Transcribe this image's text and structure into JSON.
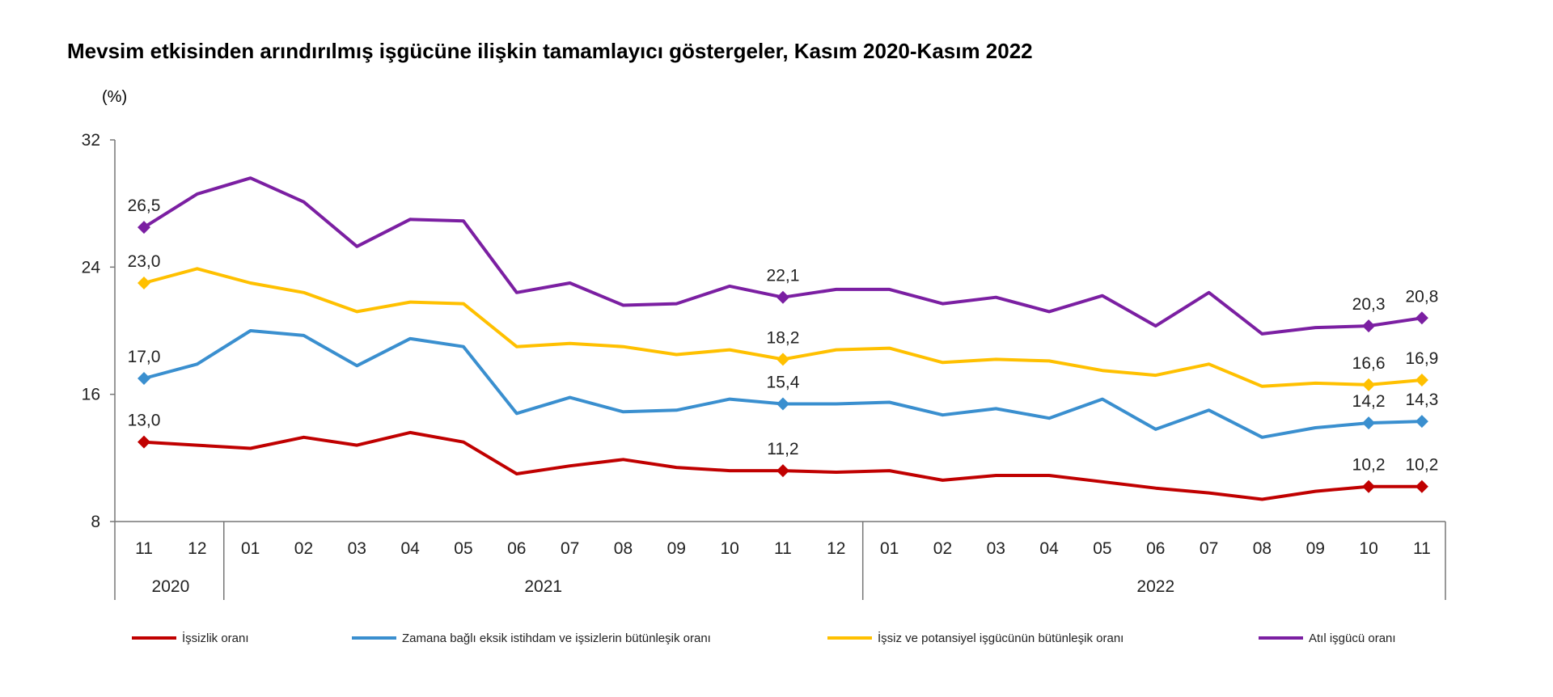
{
  "chart_data": {
    "type": "line",
    "title": "Mevsim etkisinden arındırılmış işgücüne ilişkin tamamlayıcı göstergeler, Kasım 2020-Kasım 2022",
    "ylabel": "(%)",
    "xlabel": "",
    "ylim": [
      8,
      32
    ],
    "yticks": [
      "32",
      "24",
      "16",
      "8"
    ],
    "grid": false,
    "legend_position": "bottom",
    "categories": [
      "11",
      "12",
      "01",
      "02",
      "03",
      "04",
      "05",
      "06",
      "07",
      "08",
      "09",
      "10",
      "11",
      "12",
      "01",
      "02",
      "03",
      "04",
      "05",
      "06",
      "07",
      "08",
      "09",
      "10",
      "11"
    ],
    "year_groups": [
      {
        "label": "2020",
        "start": 0,
        "end": 1
      },
      {
        "label": "2021",
        "start": 2,
        "end": 13
      },
      {
        "label": "2022",
        "start": 14,
        "end": 24
      }
    ],
    "series": [
      {
        "name": "İşsizlik oranı",
        "color": "#c00000",
        "marker_indices": [
          0,
          12,
          23,
          24
        ],
        "values": [
          13.0,
          12.8,
          12.6,
          13.3,
          12.8,
          13.6,
          13.0,
          11.0,
          11.5,
          11.9,
          11.4,
          11.2,
          11.2,
          11.1,
          11.2,
          10.6,
          10.9,
          10.9,
          10.5,
          10.1,
          9.8,
          9.4,
          9.9,
          10.2,
          10.2
        ],
        "labels": [
          {
            "index": 0,
            "text": "13,0"
          },
          {
            "index": 12,
            "text": "11,2"
          },
          {
            "index": 23,
            "text": "10,2"
          },
          {
            "index": 24,
            "text": "10,2"
          }
        ]
      },
      {
        "name": "Zamana bağlı eksik istihdam ve işsizlerin bütünleşik oranı",
        "color": "#3a8fcf",
        "marker_indices": [
          0,
          12,
          23,
          24
        ],
        "values": [
          17.0,
          17.9,
          20.0,
          19.7,
          17.8,
          19.5,
          19.0,
          14.8,
          15.8,
          14.9,
          15.0,
          15.7,
          15.4,
          15.4,
          15.5,
          14.7,
          15.1,
          14.5,
          15.7,
          13.8,
          15.0,
          13.3,
          13.9,
          14.2,
          14.3
        ],
        "labels": [
          {
            "index": 0,
            "text": "17,0"
          },
          {
            "index": 12,
            "text": "15,4"
          },
          {
            "index": 23,
            "text": "14,2"
          },
          {
            "index": 24,
            "text": "14,3"
          }
        ]
      },
      {
        "name": "İşsiz ve potansiyel işgücünün bütünleşik oranı",
        "color": "#ffc000",
        "marker_indices": [
          0,
          12,
          23,
          24
        ],
        "values": [
          23.0,
          23.9,
          23.0,
          22.4,
          21.2,
          21.8,
          21.7,
          19.0,
          19.2,
          19.0,
          18.5,
          18.8,
          18.2,
          18.8,
          18.9,
          18.0,
          18.2,
          18.1,
          17.5,
          17.2,
          17.9,
          16.5,
          16.7,
          16.6,
          16.9
        ],
        "labels": [
          {
            "index": 0,
            "text": "23,0"
          },
          {
            "index": 12,
            "text": "18,2"
          },
          {
            "index": 23,
            "text": "16,6"
          },
          {
            "index": 24,
            "text": "16,9"
          }
        ]
      },
      {
        "name": "Atıl işgücü oranı",
        "color": "#7b1fa2",
        "marker_indices": [
          0,
          12,
          23,
          24
        ],
        "values": [
          26.5,
          28.6,
          29.6,
          28.1,
          25.3,
          27.0,
          26.9,
          22.4,
          23.0,
          21.6,
          21.7,
          22.8,
          22.1,
          22.6,
          22.6,
          21.7,
          22.1,
          21.2,
          22.2,
          20.3,
          22.4,
          19.8,
          20.2,
          20.3,
          20.8
        ],
        "labels": [
          {
            "index": 0,
            "text": "26,5"
          },
          {
            "index": 12,
            "text": "22,1"
          },
          {
            "index": 23,
            "text": "20,3"
          },
          {
            "index": 24,
            "text": "20,8"
          }
        ]
      }
    ]
  }
}
